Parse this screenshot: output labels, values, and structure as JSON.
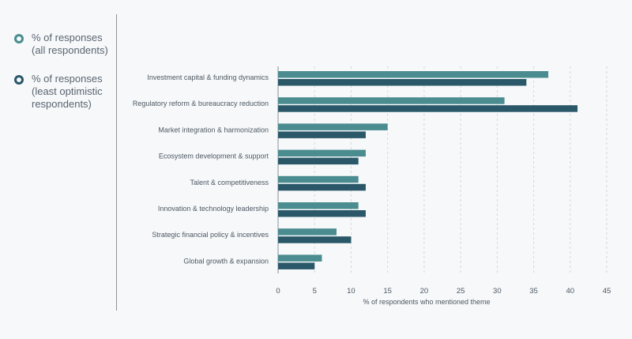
{
  "colors": {
    "all": "#4a8c8f",
    "least": "#2a5868",
    "grid": "#d4dadf",
    "axis": "#8a949c",
    "text": "#4d5862"
  },
  "legend": {
    "items": [
      {
        "label": "% of responses\n(all respondents)"
      },
      {
        "label": "% of responses\n(least optimistic\nrespondents)"
      }
    ]
  },
  "chart_data": {
    "type": "bar",
    "orientation": "horizontal",
    "categories": [
      "Investment capital & funding dynamics",
      "Regulatory reform & bureaucracy reduction",
      "Market integration & harmonization",
      "Ecosystem development & support",
      "Talent & competitiveness",
      "Innovation & technology leadership",
      "Strategic financial policy & incentives",
      "Global growth & expansion"
    ],
    "series": [
      {
        "name": "% of responses (all respondents)",
        "values": [
          37,
          31,
          15,
          12,
          11,
          11,
          8,
          6
        ]
      },
      {
        "name": "% of responses (least optimistic respondents)",
        "values": [
          34,
          41,
          12,
          11,
          12,
          12,
          10,
          5
        ]
      }
    ],
    "xlabel": "% of respondents who mentioned theme",
    "xlim": [
      0,
      45
    ],
    "xticks": [
      0,
      5,
      10,
      15,
      20,
      25,
      30,
      35,
      40,
      45
    ],
    "grid": true,
    "legend_position": "left"
  }
}
